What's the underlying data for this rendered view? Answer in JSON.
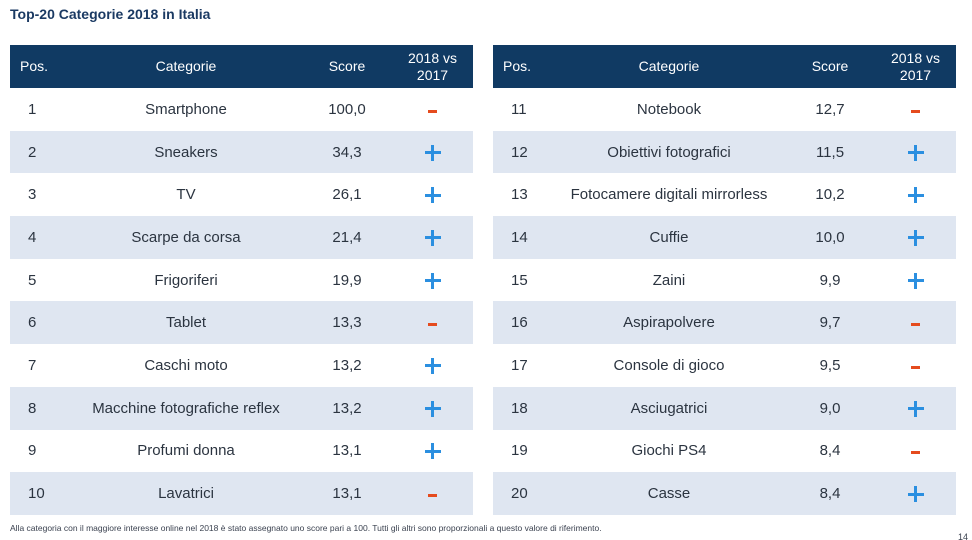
{
  "title": "Top-20 Categorie 2018 in Italia",
  "headers": {
    "pos": "Pos.",
    "category": "Categorie",
    "score": "Score",
    "trend_line1": "2018 vs",
    "trend_line2": "2017"
  },
  "colors": {
    "header_bg": "#103a63",
    "stripe": "#dfe6f1",
    "plus": "#2b8fe0",
    "minus": "#e54b1e"
  },
  "left_rows": [
    {
      "pos": "1",
      "category": "Smartphone",
      "score": "100,0",
      "trend": "minus"
    },
    {
      "pos": "2",
      "category": "Sneakers",
      "score": "34,3",
      "trend": "plus"
    },
    {
      "pos": "3",
      "category": "TV",
      "score": "26,1",
      "trend": "plus"
    },
    {
      "pos": "4",
      "category": "Scarpe da corsa",
      "score": "21,4",
      "trend": "plus"
    },
    {
      "pos": "5",
      "category": "Frigoriferi",
      "score": "19,9",
      "trend": "plus"
    },
    {
      "pos": "6",
      "category": "Tablet",
      "score": "13,3",
      "trend": "minus"
    },
    {
      "pos": "7",
      "category": "Caschi moto",
      "score": "13,2",
      "trend": "plus"
    },
    {
      "pos": "8",
      "category": "Macchine fotografiche reflex",
      "score": "13,2",
      "trend": "plus"
    },
    {
      "pos": "9",
      "category": "Profumi donna",
      "score": "13,1",
      "trend": "plus"
    },
    {
      "pos": "10",
      "category": "Lavatrici",
      "score": "13,1",
      "trend": "minus"
    }
  ],
  "right_rows": [
    {
      "pos": "11",
      "category": "Notebook",
      "score": "12,7",
      "trend": "minus"
    },
    {
      "pos": "12",
      "category": "Obiettivi fotografici",
      "score": "11,5",
      "trend": "plus"
    },
    {
      "pos": "13",
      "category": "Fotocamere digitali mirrorless",
      "score": "10,2",
      "trend": "plus"
    },
    {
      "pos": "14",
      "category": "Cuffie",
      "score": "10,0",
      "trend": "plus"
    },
    {
      "pos": "15",
      "category": "Zaini",
      "score": "9,9",
      "trend": "plus"
    },
    {
      "pos": "16",
      "category": "Aspirapolvere",
      "score": "9,7",
      "trend": "minus"
    },
    {
      "pos": "17",
      "category": "Console di gioco",
      "score": "9,5",
      "trend": "minus"
    },
    {
      "pos": "18",
      "category": "Asciugatrici",
      "score": "9,0",
      "trend": "plus"
    },
    {
      "pos": "19",
      "category": "Giochi PS4",
      "score": "8,4",
      "trend": "minus"
    },
    {
      "pos": "20",
      "category": "Casse",
      "score": "8,4",
      "trend": "plus"
    }
  ],
  "footnote": "Alla categoria con il maggiore interesse online nel 2018 è stato assegnato uno score pari a 100. Tutti gli altri sono proporzionali a questo valore di riferimento.",
  "page_number": "14"
}
